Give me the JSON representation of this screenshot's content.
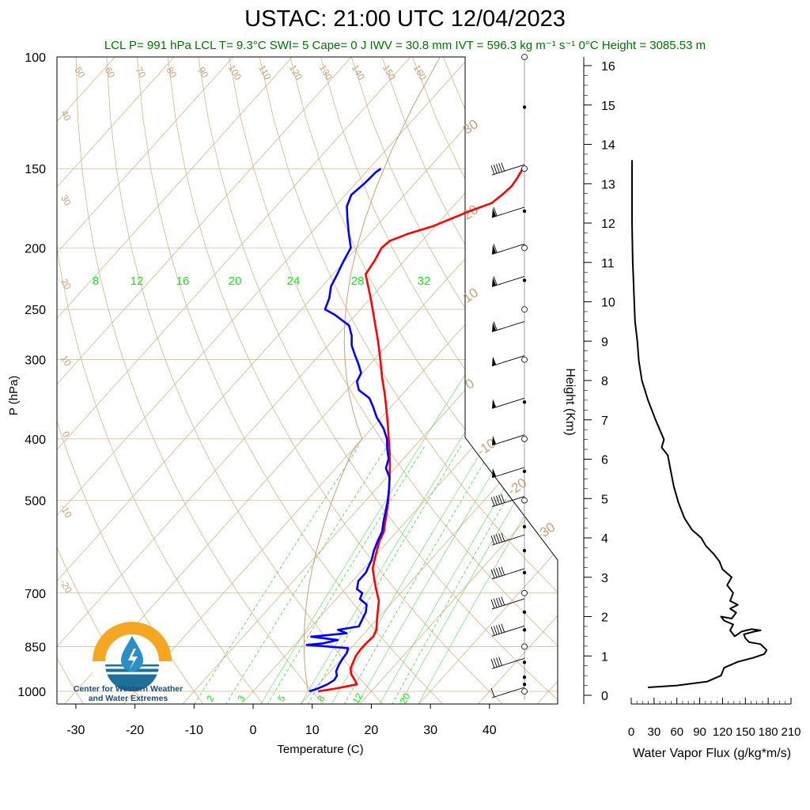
{
  "header": {
    "title": "USTAC: 21:00 UTC 12/04/2023",
    "subtitle": "LCL P= 991 hPa  LCL T= 9.3°C  SWI= 5  Cape= 0 J  IWV = 30.8 mm  IVT = 596.3 kg m⁻¹ s⁻¹  0°C Height = 3085.53 m"
  },
  "logo": {
    "line1": "Center for Western Weather",
    "line2": "and Water Extremes",
    "colors": {
      "sun": "#f5a623",
      "water": "#1f6f99",
      "drop": "#2a8fc4"
    }
  },
  "colors": {
    "temperature": "#ff0000",
    "dewpoint": "#0000ff",
    "dry_adiabat": "#d2b48c",
    "mixing_ratio": "#32cd32",
    "isotherm": "#d2b48c",
    "flux": "#000000"
  },
  "chart_data": [
    {
      "type": "line",
      "subtype": "skew-t log-p",
      "xlabel": "Temperature (C)",
      "ylabel": "P (hPa)",
      "xticks": [
        -30,
        -20,
        -10,
        0,
        10,
        20,
        30,
        40
      ],
      "yticks": [
        100,
        150,
        200,
        250,
        300,
        400,
        500,
        700,
        850,
        1000
      ],
      "yscale": "log",
      "mixing_ratio_labels_upper": [
        "8",
        "12",
        "16",
        "20",
        "24",
        "28",
        "32"
      ],
      "mixing_ratio_labels_lower": [
        "2",
        "3",
        "5",
        "8",
        "12",
        "20"
      ],
      "dry_adiabat_labels_top": [
        "50",
        "60",
        "70",
        "80",
        "90",
        "100",
        "110",
        "120",
        "130",
        "140",
        "150",
        "160"
      ],
      "isotherm_labels_left": [
        "40",
        "30",
        "20",
        "10",
        "0",
        "-10",
        "-20"
      ],
      "isotherm_labels_right": [
        "30",
        "20",
        "10",
        "0",
        "-10",
        "-20",
        "-30"
      ],
      "series": [
        {
          "name": "Temperature",
          "points": [
            [
              1000,
              11
            ],
            [
              990,
              13.5
            ],
            [
              975,
              16.5
            ],
            [
              960,
              15.5
            ],
            [
              940,
              14
            ],
            [
              920,
              13
            ],
            [
              900,
              12.5
            ],
            [
              880,
              12
            ],
            [
              860,
              11.8
            ],
            [
              840,
              11.8
            ],
            [
              820,
              12
            ],
            [
              800,
              11.5
            ],
            [
              780,
              10.5
            ],
            [
              760,
              9.5
            ],
            [
              740,
              8.5
            ],
            [
              720,
              7.5
            ],
            [
              700,
              6
            ],
            [
              680,
              4.5
            ],
            [
              660,
              3
            ],
            [
              640,
              1.5
            ],
            [
              620,
              0.5
            ],
            [
              600,
              -0.5
            ],
            [
              580,
              -1.5
            ],
            [
              560,
              -2.2
            ],
            [
              540,
              -3.5
            ],
            [
              520,
              -4.8
            ],
            [
              500,
              -6.2
            ],
            [
              480,
              -7.8
            ],
            [
              460,
              -9.5
            ],
            [
              440,
              -11.3
            ],
            [
              420,
              -13.3
            ],
            [
              400,
              -15.5
            ],
            [
              380,
              -17.8
            ],
            [
              360,
              -20.3
            ],
            [
              340,
              -23
            ],
            [
              320,
              -26
            ],
            [
              300,
              -29
            ],
            [
              280,
              -32.3
            ],
            [
              260,
              -36
            ],
            [
              240,
              -40
            ],
            [
              230,
              -42.2
            ],
            [
              220,
              -44.5
            ],
            [
              210,
              -45
            ],
            [
              200,
              -45.8
            ],
            [
              195,
              -45.5
            ],
            [
              190,
              -43.5
            ],
            [
              185,
              -40.5
            ],
            [
              180,
              -38.5
            ],
            [
              175,
              -36.5
            ],
            [
              170,
              -34
            ],
            [
              165,
              -33.5
            ],
            [
              160,
              -33.2
            ],
            [
              155,
              -33.5
            ],
            [
              150,
              -34
            ]
          ]
        },
        {
          "name": "Dewpoint",
          "points": [
            [
              1000,
              9.5
            ],
            [
              990,
              10.5
            ],
            [
              975,
              11.5
            ],
            [
              960,
              12
            ],
            [
              945,
              11.8
            ],
            [
              930,
              11
            ],
            [
              910,
              10.5
            ],
            [
              890,
              10.2
            ],
            [
              870,
              10
            ],
            [
              855,
              9.5
            ],
            [
              850,
              6
            ],
            [
              845,
              2
            ],
            [
              840,
              4.5
            ],
            [
              830,
              6.5
            ],
            [
              820,
              1.5
            ],
            [
              810,
              7
            ],
            [
              800,
              5
            ],
            [
              790,
              8
            ],
            [
              770,
              7.5
            ],
            [
              750,
              7
            ],
            [
              730,
              6
            ],
            [
              715,
              4
            ],
            [
              700,
              3.5
            ],
            [
              690,
              2
            ],
            [
              670,
              1
            ],
            [
              650,
              1
            ],
            [
              635,
              0.5
            ],
            [
              620,
              0
            ],
            [
              600,
              -1
            ],
            [
              580,
              -1.8
            ],
            [
              560,
              -2.5
            ],
            [
              540,
              -3.8
            ],
            [
              520,
              -5
            ],
            [
              500,
              -6.3
            ],
            [
              480,
              -7.8
            ],
            [
              460,
              -9.5
            ],
            [
              445,
              -11.5
            ],
            [
              430,
              -12.5
            ],
            [
              415,
              -14.2
            ],
            [
              400,
              -15.8
            ],
            [
              385,
              -18
            ],
            [
              370,
              -20.8
            ],
            [
              355,
              -23.2
            ],
            [
              345,
              -25
            ],
            [
              335,
              -28
            ],
            [
              325,
              -29.6
            ],
            [
              315,
              -30.2
            ],
            [
              305,
              -32
            ],
            [
              295,
              -34
            ],
            [
              285,
              -36
            ],
            [
              275,
              -37.5
            ],
            [
              265,
              -39.5
            ],
            [
              255,
              -43.5
            ],
            [
              250,
              -46
            ],
            [
              240,
              -47
            ],
            [
              230,
              -48.5
            ],
            [
              220,
              -49.3
            ],
            [
              210,
              -50.2
            ],
            [
              200,
              -51
            ],
            [
              190,
              -53.5
            ],
            [
              180,
              -56
            ],
            [
              172,
              -58
            ],
            [
              165,
              -59
            ],
            [
              158,
              -58.5
            ],
            [
              152,
              -58.3
            ],
            [
              150,
              -58
            ]
          ]
        }
      ],
      "wind_barbs": [
        {
          "p": 150,
          "speed": 45,
          "dir": 260
        },
        {
          "p": 175,
          "speed": 55,
          "dir": 265
        },
        {
          "p": 200,
          "speed": 55,
          "dir": 265
        },
        {
          "p": 225,
          "speed": 55,
          "dir": 265
        },
        {
          "p": 265,
          "speed": 55,
          "dir": 265
        },
        {
          "p": 300,
          "speed": 50,
          "dir": 265
        },
        {
          "p": 350,
          "speed": 50,
          "dir": 268
        },
        {
          "p": 400,
          "speed": 50,
          "dir": 268
        },
        {
          "p": 450,
          "speed": 50,
          "dir": 270
        },
        {
          "p": 500,
          "speed": 45,
          "dir": 255
        },
        {
          "p": 575,
          "speed": 45,
          "dir": 245
        },
        {
          "p": 650,
          "speed": 45,
          "dir": 240
        },
        {
          "p": 725,
          "speed": 45,
          "dir": 235
        },
        {
          "p": 800,
          "speed": 45,
          "dir": 225
        },
        {
          "p": 900,
          "speed": 35,
          "dir": 220
        },
        {
          "p": 1000,
          "speed": 10,
          "dir": 200
        }
      ]
    },
    {
      "type": "line",
      "xlabel": "Water Vapor Flux (g/kg*m/s)",
      "ylabel": "Height (Km)",
      "xticks": [
        0,
        30,
        60,
        90,
        120,
        150,
        180,
        210
      ],
      "yticks": [
        0,
        1,
        2,
        3,
        4,
        5,
        6,
        7,
        8,
        9,
        10,
        11,
        12,
        13,
        14,
        15,
        16
      ],
      "xlim": [
        0,
        210
      ],
      "ylim": [
        -0.2,
        16.3
      ],
      "series": [
        {
          "name": "Water Vapor Flux",
          "points": [
            [
              22,
              0.2
            ],
            [
              60,
              0.25
            ],
            [
              100,
              0.35
            ],
            [
              118,
              0.5
            ],
            [
              122,
              0.7
            ],
            [
              140,
              0.85
            ],
            [
              160,
              0.95
            ],
            [
              175,
              1.05
            ],
            [
              178,
              1.15
            ],
            [
              170,
              1.3
            ],
            [
              155,
              1.35
            ],
            [
              150,
              1.45
            ],
            [
              148,
              1.55
            ],
            [
              162,
              1.62
            ],
            [
              170,
              1.65
            ],
            [
              158,
              1.68
            ],
            [
              145,
              1.62
            ],
            [
              136,
              1.5
            ],
            [
              130,
              1.65
            ],
            [
              134,
              1.8
            ],
            [
              122,
              1.9
            ],
            [
              118,
              2.0
            ],
            [
              132,
              1.95
            ],
            [
              138,
              2.1
            ],
            [
              130,
              2.2
            ],
            [
              140,
              2.3
            ],
            [
              130,
              2.4
            ],
            [
              134,
              2.6
            ],
            [
              126,
              2.8
            ],
            [
              132,
              3.0
            ],
            [
              120,
              3.2
            ],
            [
              116,
              3.4
            ],
            [
              108,
              3.6
            ],
            [
              98,
              3.8
            ],
            [
              92,
              4.0
            ],
            [
              80,
              4.2
            ],
            [
              70,
              4.5
            ],
            [
              62,
              4.9
            ],
            [
              56,
              5.3
            ],
            [
              52,
              5.7
            ],
            [
              48,
              6.1
            ],
            [
              40,
              6.3
            ],
            [
              43,
              6.5
            ],
            [
              32,
              7.0
            ],
            [
              22,
              7.5
            ],
            [
              14,
              8.0
            ],
            [
              10,
              8.5
            ],
            [
              8,
              9.0
            ],
            [
              5,
              9.5
            ],
            [
              4,
              10.0
            ],
            [
              3,
              10.5
            ],
            [
              2,
              11.0
            ],
            [
              1,
              12.0
            ],
            [
              1,
              13.0
            ],
            [
              1,
              13.6
            ]
          ]
        }
      ]
    }
  ]
}
